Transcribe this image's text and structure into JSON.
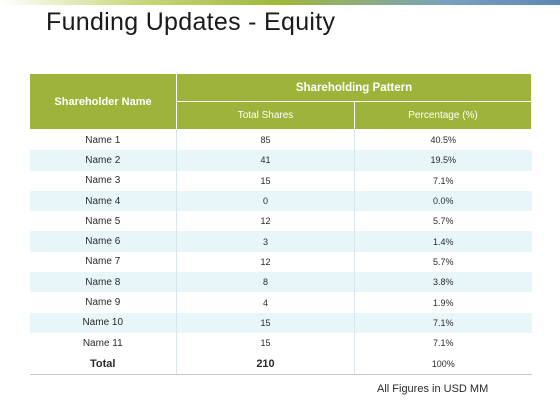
{
  "slide": {
    "title": "Funding Updates - Equity",
    "note": "All Figures in USD MM"
  },
  "table": {
    "header_name": "Shareholder Name",
    "header_group": "Shareholding Pattern",
    "header_shares": "Total Shares",
    "header_pct": "Percentage (%)",
    "rows": [
      {
        "name": "Name 1",
        "shares": "85",
        "pct": "40.5%"
      },
      {
        "name": "Name 2",
        "shares": "41",
        "pct": "19.5%"
      },
      {
        "name": "Name 3",
        "shares": "15",
        "pct": "7.1%"
      },
      {
        "name": "Name 4",
        "shares": "0",
        "pct": "0.0%"
      },
      {
        "name": "Name 5",
        "shares": "12",
        "pct": "5.7%"
      },
      {
        "name": "Name 6",
        "shares": "3",
        "pct": "1.4%"
      },
      {
        "name": "Name 7",
        "shares": "12",
        "pct": "5.7%"
      },
      {
        "name": "Name 8",
        "shares": "8",
        "pct": "3.8%"
      },
      {
        "name": "Name 9",
        "shares": "4",
        "pct": "1.9%"
      },
      {
        "name": "Name 10",
        "shares": "15",
        "pct": "7.1%"
      },
      {
        "name": "Name 11",
        "shares": "15",
        "pct": "7.1%"
      }
    ],
    "total": {
      "name": "Total",
      "shares": "210",
      "pct": "100%"
    }
  },
  "colors": {
    "header": "#9cb43a",
    "stripe": "#e8f6fa"
  }
}
